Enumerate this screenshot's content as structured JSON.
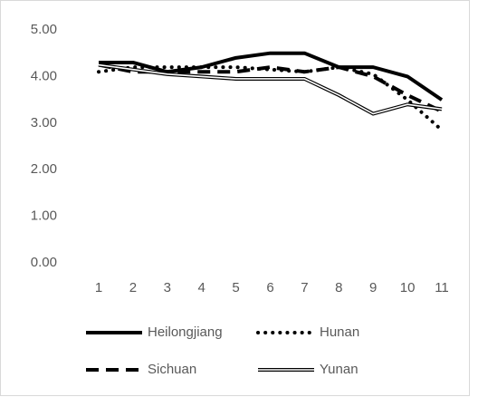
{
  "chart_data": {
    "type": "line",
    "categories": [
      "1",
      "2",
      "3",
      "4",
      "5",
      "6",
      "7",
      "8",
      "9",
      "10",
      "11"
    ],
    "series": [
      {
        "name": "Heilongjiang",
        "color": "#000000",
        "style": "solid",
        "values": [
          4.3,
          4.3,
          4.1,
          4.2,
          4.4,
          4.5,
          4.5,
          4.2,
          4.2,
          4.0,
          3.5
        ]
      },
      {
        "name": "Hunan",
        "color": "#000000",
        "style": "dotted",
        "values": [
          4.1,
          4.2,
          4.2,
          4.2,
          4.2,
          4.15,
          4.1,
          4.2,
          4.05,
          3.5,
          2.85
        ]
      },
      {
        "name": "Sichuan",
        "color": "#000000",
        "style": "dashed",
        "values": [
          4.25,
          4.1,
          4.1,
          4.1,
          4.1,
          4.2,
          4.1,
          4.2,
          4.0,
          3.6,
          3.25
        ]
      },
      {
        "name": "Yunan",
        "color": "#000000",
        "style": "double",
        "values": [
          4.25,
          4.15,
          4.05,
          4.0,
          3.95,
          3.95,
          3.95,
          3.6,
          3.2,
          3.4,
          3.3
        ]
      }
    ],
    "ylim": [
      0,
      5
    ],
    "yticks": [
      {
        "value": 0,
        "label": "0.00"
      },
      {
        "value": 1,
        "label": "1.00"
      },
      {
        "value": 2,
        "label": "2.00"
      },
      {
        "value": 3,
        "label": "3.00"
      },
      {
        "value": 4,
        "label": "4.00"
      },
      {
        "value": 5,
        "label": "5.00"
      }
    ],
    "grid": false,
    "legend": "bottom"
  }
}
